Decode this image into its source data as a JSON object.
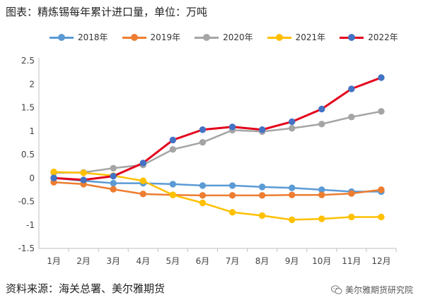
{
  "header": {
    "caption": "图表：精炼锡每年累计进口量，单位：万吨"
  },
  "footer": {
    "source": "资料来源：海关总署、美尔雅期货"
  },
  "watermark": {
    "text": "美尔雅期货研究院",
    "icon": "wechat-icon"
  },
  "chart_data": {
    "type": "line",
    "title": "",
    "xlabel": "",
    "ylabel": "",
    "categories": [
      "1月",
      "2月",
      "3月",
      "4月",
      "5月",
      "6月",
      "7月",
      "8月",
      "9月",
      "10月",
      "11月",
      "12月"
    ],
    "ylim": [
      -1.5,
      2.5
    ],
    "yticks": [
      "2.5",
      "2",
      "1.5",
      "1",
      "0.5",
      "0",
      "-0.5",
      "-1",
      "-1.5"
    ],
    "grid": false,
    "legend_position": "top",
    "series": [
      {
        "name": "2018年",
        "color": "#5B9BD5",
        "values": [
          0.0,
          -0.06,
          -0.11,
          -0.11,
          -0.13,
          -0.16,
          -0.16,
          -0.19,
          -0.21,
          -0.25,
          -0.29,
          -0.29
        ]
      },
      {
        "name": "2019年",
        "color": "#ED7D31",
        "values": [
          -0.09,
          -0.13,
          -0.24,
          -0.34,
          -0.36,
          -0.37,
          -0.37,
          -0.37,
          -0.36,
          -0.36,
          -0.33,
          -0.25
        ]
      },
      {
        "name": "2020年",
        "color": "#A5A5A5",
        "values": [
          0.11,
          0.12,
          0.21,
          0.28,
          0.61,
          0.76,
          1.02,
          0.99,
          1.06,
          1.15,
          1.3,
          1.42
        ]
      },
      {
        "name": "2021年",
        "color": "#FFC000",
        "values": [
          0.13,
          0.11,
          0.05,
          -0.06,
          -0.36,
          -0.53,
          -0.73,
          -0.8,
          -0.89,
          -0.87,
          -0.83,
          -0.83
        ]
      },
      {
        "name": "2022年",
        "color": "#E3001B",
        "marker_color": "#4472C4",
        "values": [
          0.0,
          -0.04,
          0.04,
          0.32,
          0.81,
          1.03,
          1.09,
          1.03,
          1.2,
          1.47,
          1.9,
          2.14
        ]
      }
    ]
  }
}
